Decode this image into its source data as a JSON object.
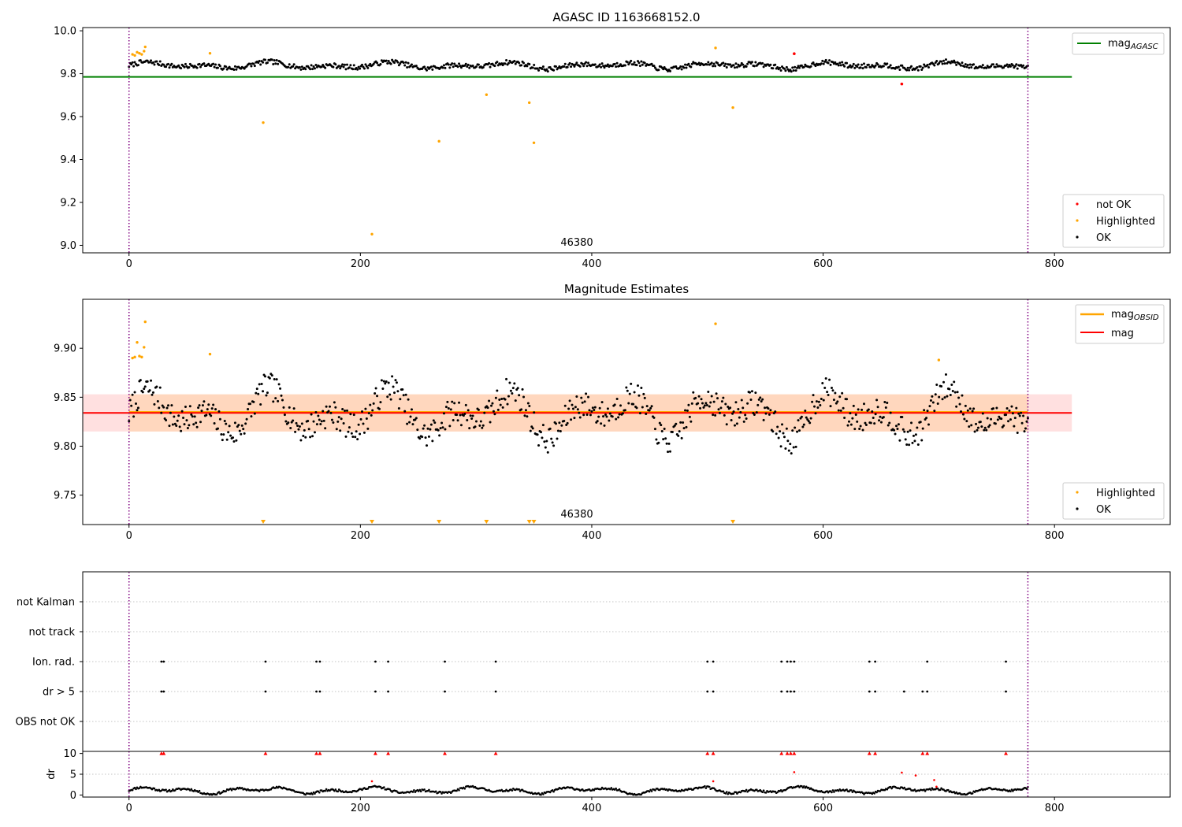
{
  "chart_data": [
    {
      "type": "scatter",
      "title": "AGASC ID 1163668152.0",
      "xlabel": "",
      "ylabel": "",
      "xlim": [
        -40,
        900
      ],
      "ylim": [
        8.965,
        10.015
      ],
      "x_ticks": [
        0,
        200,
        400,
        600,
        800
      ],
      "y_ticks": [
        9.0,
        9.2,
        9.4,
        9.6,
        9.8,
        10.0
      ],
      "y_tick_labels": [
        "9.0",
        "9.2",
        "9.4",
        "9.6",
        "9.8",
        "10.0"
      ],
      "obsid_marker": {
        "label": "46380",
        "x": 388
      },
      "vlines": [
        0,
        777
      ],
      "hline": {
        "name": "mag_AGASC",
        "y": 9.785,
        "x_range": [
          0,
          815
        ],
        "color": "#008000"
      },
      "legend_upper": [
        {
          "label": "mag",
          "sub": "AGASC",
          "color": "#008000"
        }
      ],
      "legend_lower": [
        {
          "label": "not OK",
          "color": "#ff0000"
        },
        {
          "label": "Highlighted",
          "color": "#ffa500"
        },
        {
          "label": "OK",
          "color": "#000000"
        }
      ],
      "ok_model": {
        "n": 780,
        "base": 9.833,
        "amp": 0.018,
        "noise": 0.011,
        "seed": 7
      },
      "highlighted": [
        [
          3,
          9.89
        ],
        [
          5,
          9.885
        ],
        [
          7,
          9.9
        ],
        [
          9,
          9.895
        ],
        [
          11,
          9.89
        ],
        [
          13,
          9.905
        ],
        [
          14,
          9.925
        ],
        [
          70,
          9.895
        ],
        [
          116,
          9.572
        ],
        [
          210,
          9.052
        ],
        [
          268,
          9.485
        ],
        [
          309,
          9.702
        ],
        [
          346,
          9.665
        ],
        [
          350,
          9.478
        ],
        [
          507,
          9.92
        ],
        [
          522,
          9.642
        ]
      ],
      "not_ok": [
        [
          575,
          9.893
        ],
        [
          668,
          9.752
        ]
      ]
    },
    {
      "type": "scatter",
      "title": "Magnitude Estimates",
      "xlabel": "",
      "ylabel": "",
      "xlim": [
        -40,
        900
      ],
      "ylim": [
        9.72,
        9.95
      ],
      "x_ticks": [
        0,
        200,
        400,
        600,
        800
      ],
      "y_ticks": [
        9.75,
        9.8,
        9.85,
        9.9
      ],
      "y_tick_labels": [
        "9.75",
        "9.80",
        "9.85",
        "9.90"
      ],
      "obsid_marker": {
        "label": "46380",
        "x": 388
      },
      "vlines": [
        0,
        777
      ],
      "mag_mean": 9.834,
      "band_outer": [
        9.815,
        9.853
      ],
      "band_inner": [
        9.815,
        9.853
      ],
      "band_x_range": [
        0,
        815
      ],
      "legend_upper": [
        {
          "label": "mag",
          "sub": "OBSID",
          "color": "#ffa500"
        },
        {
          "label": "mag",
          "sub": "",
          "color": "#ff0000"
        }
      ],
      "legend_lower": [
        {
          "label": "Highlighted",
          "color": "#ffa500"
        },
        {
          "label": "OK",
          "color": "#000000"
        }
      ],
      "ok_model": {
        "n": 780,
        "base": 9.833,
        "amp": 0.018,
        "noise": 0.011,
        "seed": 7
      },
      "highlighted": [
        [
          3,
          9.89
        ],
        [
          5,
          9.891
        ],
        [
          7,
          9.906
        ],
        [
          9,
          9.892
        ],
        [
          11,
          9.891
        ],
        [
          13,
          9.901
        ],
        [
          14,
          9.927
        ],
        [
          70,
          9.894
        ],
        [
          507,
          9.925
        ],
        [
          700,
          9.888
        ]
      ],
      "below_range_markers": [
        116,
        210,
        268,
        309,
        346,
        350,
        522
      ]
    },
    {
      "type": "scatter",
      "title": "",
      "xlabel": "",
      "ylabel": "",
      "xlim": [
        -40,
        900
      ],
      "categories": [
        "not Kalman",
        "not track",
        "Ion. rad.",
        "dr > 5",
        "OBS not OK"
      ],
      "vlines": [
        0,
        777
      ],
      "flag_x": [
        28,
        30,
        118,
        162,
        165,
        213,
        224,
        273,
        317,
        500,
        505,
        564,
        569,
        572,
        575,
        640,
        645,
        670,
        686,
        690,
        758
      ],
      "ion_rad_x": [
        28,
        30,
        118,
        162,
        165,
        213,
        224,
        273,
        317,
        500,
        505,
        564,
        569,
        572,
        575,
        640,
        645,
        690,
        758
      ],
      "dr_gt5_x": [
        28,
        30,
        118,
        162,
        165,
        213,
        224,
        273,
        317,
        500,
        505,
        564,
        569,
        572,
        575,
        640,
        645,
        670,
        686,
        690,
        758
      ]
    },
    {
      "type": "scatter",
      "title": "",
      "xlabel": "",
      "ylabel": "dr",
      "xlim": [
        -40,
        900
      ],
      "ylim": [
        -0.5,
        10.5
      ],
      "x_ticks": [
        0,
        200,
        400,
        600,
        800
      ],
      "y_ticks": [
        0,
        5,
        10
      ],
      "y_tick_labels": [
        "0",
        "5",
        "10"
      ],
      "vlines": [
        0,
        777
      ],
      "dr_model": {
        "n": 780,
        "seed": 11
      },
      "dr_outliers": [
        [
          210,
          3.3
        ],
        [
          505,
          3.3
        ],
        [
          575,
          5.5
        ],
        [
          668,
          5.4
        ],
        [
          680,
          4.7
        ],
        [
          696,
          3.6
        ],
        [
          698,
          2.0
        ]
      ],
      "dr_capped_x": [
        28,
        30,
        118,
        162,
        165,
        213,
        224,
        273,
        317,
        500,
        505,
        564,
        569,
        572,
        575,
        640,
        645,
        686,
        690,
        758
      ]
    }
  ]
}
